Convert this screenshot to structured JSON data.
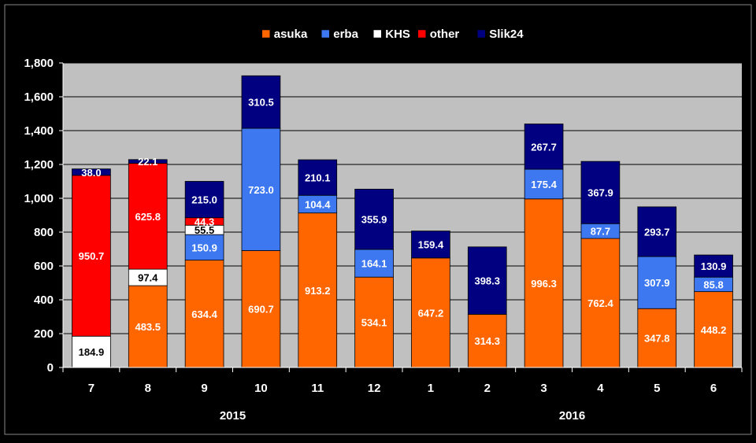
{
  "chart_data": {
    "type": "bar",
    "stacked": true,
    "title": "",
    "xlabel": "",
    "ylabel": "",
    "ylim": [
      0,
      1800
    ],
    "yticks": [
      0,
      200,
      400,
      600,
      800,
      1000,
      1200,
      1400,
      1600,
      1800
    ],
    "ytick_labels": [
      "0",
      "200",
      "400",
      "600",
      "800",
      "1,000",
      "1,200",
      "1,400",
      "1,600",
      "1,800"
    ],
    "categories": [
      "7",
      "8",
      "9",
      "10",
      "11",
      "12",
      "1",
      "2",
      "3",
      "4",
      "5",
      "6"
    ],
    "year_groups": [
      {
        "label": "2015",
        "from": 0,
        "to": 5
      },
      {
        "label": "2016",
        "from": 6,
        "to": 11
      }
    ],
    "legend_position": "top",
    "grid": true,
    "plot_background": "#c0c0c0",
    "series": [
      {
        "name": "asuka",
        "color": "#ff6600",
        "values": [
          null,
          483.5,
          634.4,
          690.7,
          913.2,
          534.1,
          647.2,
          314.3,
          996.3,
          762.4,
          347.8,
          448.2
        ]
      },
      {
        "name": "erba",
        "color": "#3d78f0",
        "values": [
          null,
          null,
          150.9,
          723.0,
          104.4,
          164.1,
          null,
          null,
          175.4,
          87.7,
          307.9,
          85.8
        ]
      },
      {
        "name": "KHS",
        "color": "#ffffff",
        "values": [
          184.9,
          97.4,
          55.5,
          null,
          null,
          null,
          null,
          null,
          null,
          null,
          null,
          null
        ]
      },
      {
        "name": "other",
        "color": "#ff0000",
        "values": [
          950.7,
          625.8,
          44.3,
          null,
          null,
          null,
          null,
          null,
          null,
          null,
          null,
          null
        ]
      },
      {
        "name": "Slik24",
        "color": "#000080",
        "values": [
          38.0,
          22.1,
          215.0,
          310.5,
          210.1,
          355.9,
          159.4,
          398.3,
          267.7,
          367.9,
          293.7,
          130.9
        ]
      }
    ]
  }
}
